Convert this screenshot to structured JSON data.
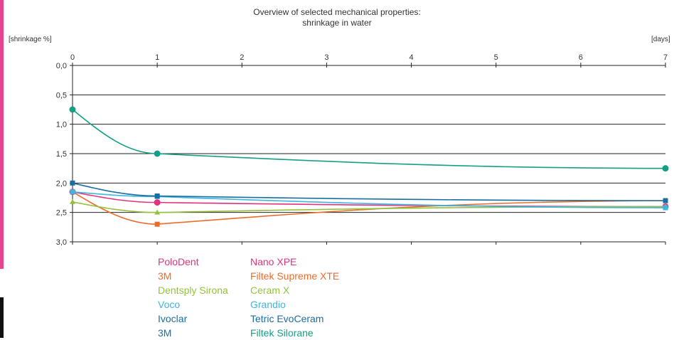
{
  "colors": {
    "edge_pink": "#e8438f",
    "edge_black": "#111111"
  },
  "chart_data": {
    "type": "line",
    "title": "Overview of selected mechanical properties:",
    "subtitle": "shrinkage in water",
    "ylabel": "[shrinkage %]",
    "xlabel": "[days]",
    "x_ticks": [
      "0",
      "1",
      "2",
      "3",
      "4",
      "5",
      "6",
      "7"
    ],
    "y_ticks": [
      "0,0",
      "0,5",
      "1,0",
      "1,5",
      "2,0",
      "2,5",
      "3,0"
    ],
    "xlim": [
      0,
      7
    ],
    "ylim": [
      0,
      3
    ],
    "y_inverted": true,
    "grid": "horizontal",
    "legend_position": "bottom",
    "series": [
      {
        "name": "Nano XPE",
        "manufacturer": "PoloDent",
        "color": "#e2337d",
        "marker": "circle",
        "x": [
          0,
          1,
          7
        ],
        "y": [
          2.15,
          2.33,
          2.4
        ]
      },
      {
        "name": "Filtek Supreme XTE",
        "manufacturer": "3M",
        "color": "#ec6c2b",
        "marker": "square",
        "x": [
          0,
          1,
          7
        ],
        "y": [
          2.15,
          2.7,
          2.3
        ]
      },
      {
        "name": "Ceram X",
        "manufacturer": "Dentsply Sirona",
        "color": "#94c23c",
        "marker": "triangle",
        "x": [
          0,
          1,
          7
        ],
        "y": [
          2.32,
          2.5,
          2.4
        ]
      },
      {
        "name": "Grandio",
        "manufacturer": "Voco",
        "color": "#3db5e5",
        "marker": "square",
        "x": [
          0,
          1,
          7
        ],
        "y": [
          2.15,
          2.23,
          2.42
        ]
      },
      {
        "name": "Tetric EvoCeram",
        "manufacturer": "Ivoclar",
        "color": "#1a6fa0",
        "marker": "square",
        "x": [
          0,
          1,
          7
        ],
        "y": [
          2.0,
          2.22,
          2.3
        ]
      },
      {
        "name": "Filtek Silorane",
        "manufacturer": "3M",
        "color": "#15a085",
        "marker": "circle",
        "x": [
          0,
          1,
          7
        ],
        "y": [
          0.75,
          1.5,
          1.75
        ]
      }
    ]
  }
}
